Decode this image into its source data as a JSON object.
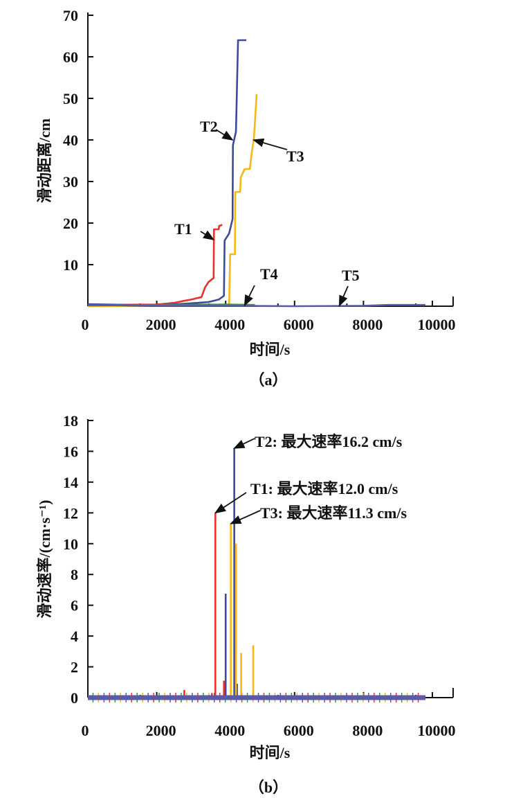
{
  "chart_data": [
    {
      "type": "line",
      "panel_label": "（a）",
      "xlabel": "时间/s",
      "ylabel": "滑动距离/cm",
      "xlim": [
        0,
        10000
      ],
      "ylim": [
        0,
        70
      ],
      "xticks": [
        0,
        2000,
        4000,
        6000,
        8000,
        10000
      ],
      "yticks": [
        10,
        20,
        30,
        40,
        50,
        60,
        70
      ],
      "grid": false,
      "series": [
        {
          "name": "T1",
          "color": "#e8312a",
          "x": [
            0,
            2000,
            2500,
            2800,
            3000,
            3300,
            3400,
            3500,
            3650,
            3660,
            3800,
            3810,
            3900
          ],
          "y": [
            0.3,
            0.4,
            0.8,
            1.3,
            1.6,
            2.2,
            4.5,
            5.8,
            6.8,
            18.5,
            18.5,
            19.3,
            19.6
          ]
        },
        {
          "name": "T2",
          "color": "#3b4a9a",
          "x": [
            0,
            2000,
            3000,
            3500,
            3800,
            3950,
            3970,
            4100,
            4200,
            4210,
            4300,
            4360,
            4600
          ],
          "y": [
            0.5,
            0.2,
            0.7,
            1.0,
            1.6,
            2.5,
            15.8,
            17.5,
            21.0,
            38.7,
            42.0,
            64.0,
            64.0
          ]
        },
        {
          "name": "T3",
          "color": "#f6b817",
          "x": [
            0,
            4100,
            4130,
            4270,
            4280,
            4420,
            4440,
            4550,
            4700,
            4760,
            4820,
            4900
          ],
          "y": [
            0,
            0.2,
            12.5,
            12.5,
            27.5,
            27.5,
            31.0,
            33.0,
            33.0,
            37.0,
            40.3,
            51.0
          ]
        },
        {
          "name": "T4",
          "color": "#2f9a3a",
          "x": [
            0,
            2000,
            4000,
            4850
          ],
          "y": [
            0.2,
            0.3,
            0.4,
            0.3
          ]
        },
        {
          "name": "T5",
          "color": "#5a5aa8",
          "x": [
            0,
            2000,
            4000,
            6000,
            8000,
            8700,
            9800
          ],
          "y": [
            0.3,
            0.1,
            0.1,
            0.0,
            0.1,
            0.3,
            0.3
          ]
        }
      ],
      "annotations": [
        {
          "text": "T1",
          "target": [
            3650,
            16
          ]
        },
        {
          "text": "T2",
          "target": [
            4200,
            40
          ]
        },
        {
          "text": "T3",
          "target": [
            4810,
            40
          ]
        },
        {
          "text": "T4",
          "target": [
            4550,
            0.2
          ]
        },
        {
          "text": "T5",
          "target": [
            7300,
            0.1
          ]
        }
      ]
    },
    {
      "type": "bar",
      "panel_label": "（b）",
      "xlabel": "时间/s",
      "ylabel": "滑动速率/(cm·s⁻¹)",
      "xlim": [
        0,
        10000
      ],
      "ylim": [
        0,
        18
      ],
      "xticks": [
        0,
        2000,
        4000,
        6000,
        8000,
        10000
      ],
      "yticks": [
        0,
        2,
        4,
        6,
        8,
        10,
        12,
        14,
        16,
        18
      ],
      "grid": false,
      "series": [
        {
          "name": "T1",
          "color": "#e8312a",
          "x": [
            2800,
            3600,
            3700,
            3950
          ],
          "y": [
            0.5,
            0.3,
            12.0,
            1.1
          ]
        },
        {
          "name": "T2",
          "color": "#3b4a9a",
          "x": [
            4000,
            4250,
            4330
          ],
          "y": [
            6.75,
            16.2,
            0.9
          ]
        },
        {
          "name": "T3",
          "color": "#f6b817",
          "x": [
            4150,
            4300,
            4450,
            4800
          ],
          "y": [
            11.3,
            10.0,
            2.9,
            3.4
          ]
        },
        {
          "name": "T5",
          "color": "#5a5aa8",
          "x": [
            0,
            9800
          ],
          "y": [
            0,
            0
          ]
        }
      ],
      "annotations": [
        {
          "text": "T2: 最大速率16.2 cm/s",
          "target": [
            4250,
            16.2
          ]
        },
        {
          "text": "T1: 最大速率12.0 cm/s",
          "target": [
            3700,
            12.0
          ]
        },
        {
          "text": "T3: 最大速率11.3 cm/s",
          "target": [
            4150,
            11.3
          ]
        }
      ]
    }
  ]
}
